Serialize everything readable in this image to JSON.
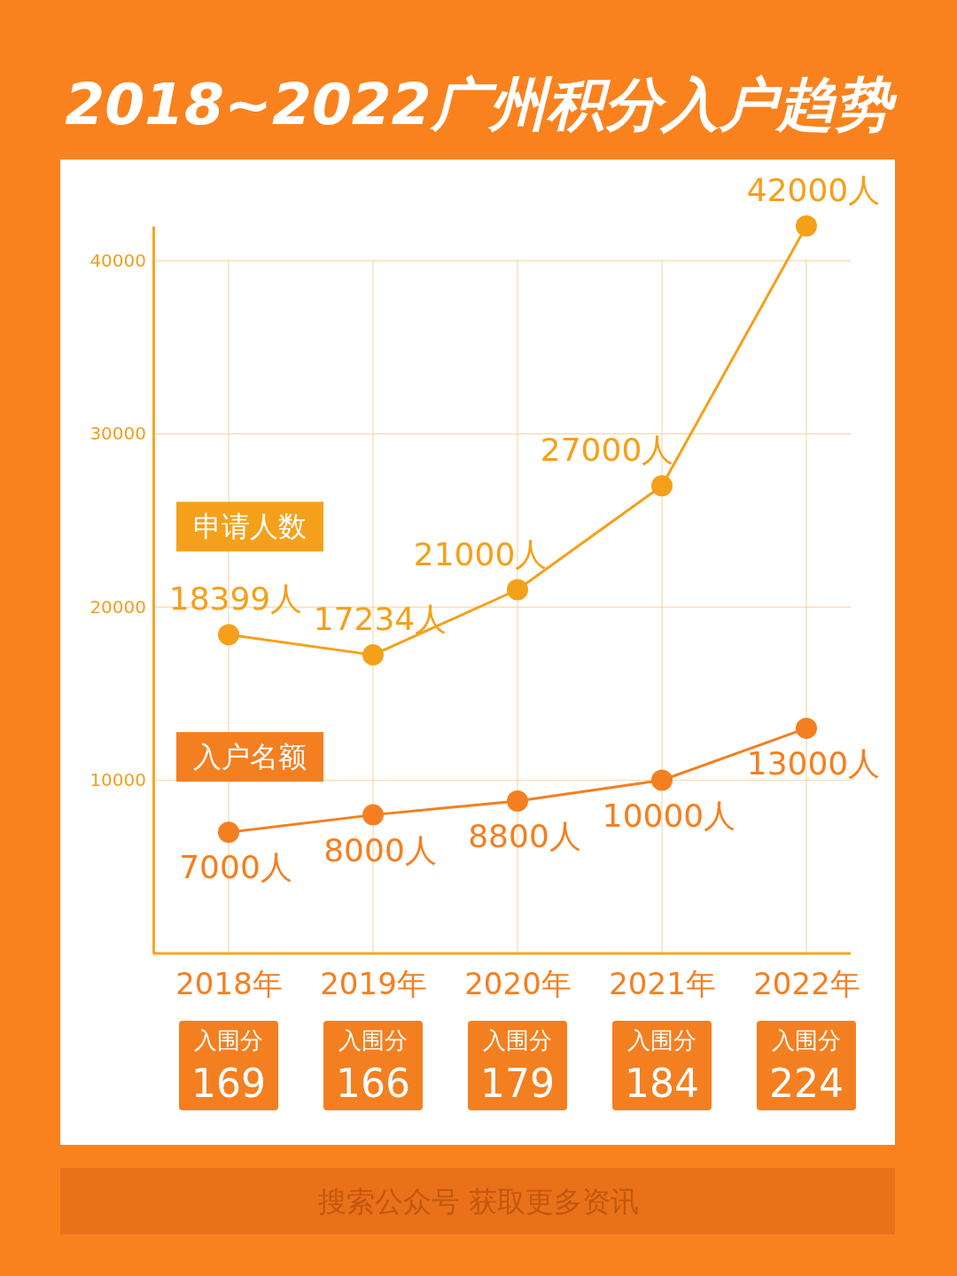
{
  "chart_data": {
    "type": "line",
    "title": "2018~2022广州积分入户趋势",
    "categories": [
      "2018年",
      "2019年",
      "2020年",
      "2021年",
      "2022年"
    ],
    "series": [
      {
        "name": "申请人数",
        "color": "#f5a01a",
        "values": [
          18399,
          17234,
          21000,
          27000,
          42000
        ],
        "value_labels": [
          "18399人",
          "17234人",
          "21000人",
          "27000人",
          "42000人"
        ]
      },
      {
        "name": "入户名额",
        "color": "#f47f20",
        "values": [
          7000,
          8000,
          8800,
          10000,
          13000
        ],
        "value_labels": [
          "7000人",
          "8000人",
          "8800人",
          "10000人",
          "13000人"
        ]
      }
    ],
    "ylim": [
      0,
      42000
    ],
    "yticks": [
      10000,
      20000,
      30000,
      40000
    ],
    "grid": true,
    "marker": "circle",
    "annotations": [
      "入围分\n169",
      "入围分\n166",
      "入围分\n179",
      "入围分\n184",
      "入围分\n224",
      "搜索公众号 获取更多资讯"
    ]
  }
}
